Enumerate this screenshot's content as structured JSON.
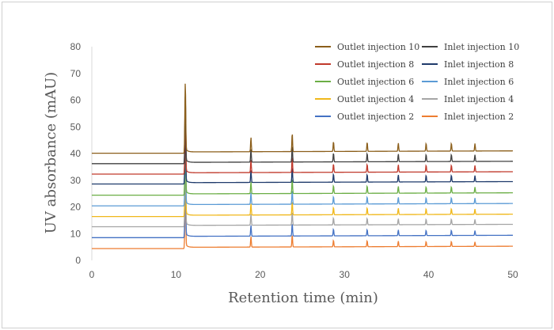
{
  "chart_data": {
    "type": "line",
    "title": "",
    "xlabel": "Retention time (min)",
    "ylabel": "UV absorbance (mAU)",
    "xlim": [
      0,
      50
    ],
    "ylim": [
      0,
      80
    ],
    "x_ticks": [
      0,
      10,
      20,
      30,
      40,
      50
    ],
    "y_ticks": [
      0,
      10,
      20,
      30,
      40,
      50,
      60,
      70,
      80
    ],
    "grid": false,
    "legend_position": "top-right",
    "peak_retention_times": [
      11.1,
      18.9,
      23.8,
      28.7,
      32.7,
      36.4,
      39.7,
      42.7,
      45.5
    ],
    "series": [
      {
        "name": "Outlet injection 10",
        "color": "#8B5E1A",
        "baseline": 40.1,
        "peak_heights": [
          26.5,
          5.4,
          7.0,
          3.8,
          3.5,
          3.1,
          3.0,
          3.0,
          2.8
        ]
      },
      {
        "name": "Inlet injection 10",
        "color": "#404040",
        "baseline": 36.2,
        "peak_heights": [
          25.5,
          4.9,
          6.2,
          3.4,
          3.2,
          2.9,
          2.7,
          2.7,
          2.5
        ]
      },
      {
        "name": "Outlet injection 8",
        "color": "#C0392B",
        "baseline": 32.3,
        "peak_heights": [
          24.5,
          4.8,
          6.0,
          3.2,
          3.0,
          2.8,
          2.6,
          2.6,
          2.4
        ]
      },
      {
        "name": "Inlet injection 8",
        "color": "#1F3A6B",
        "baseline": 28.6,
        "peak_heights": [
          23.5,
          4.6,
          5.8,
          3.1,
          2.9,
          2.7,
          2.5,
          2.5,
          2.3
        ]
      },
      {
        "name": "Outlet injection 6",
        "color": "#6BAE45",
        "baseline": 24.4,
        "peak_heights": [
          26.0,
          4.5,
          5.6,
          3.0,
          2.8,
          2.6,
          2.4,
          2.4,
          2.2
        ]
      },
      {
        "name": "Inlet injection 6",
        "color": "#5B9BD5",
        "baseline": 20.4,
        "peak_heights": [
          24.0,
          4.4,
          5.4,
          2.9,
          2.7,
          2.5,
          2.3,
          2.3,
          2.1
        ]
      },
      {
        "name": "Outlet injection 4",
        "color": "#F0B81B",
        "baseline": 16.4,
        "peak_heights": [
          25.0,
          4.3,
          5.2,
          2.8,
          2.6,
          2.4,
          2.2,
          2.2,
          2.0
        ]
      },
      {
        "name": "Inlet injection 4",
        "color": "#A5A5A5",
        "baseline": 12.6,
        "peak_heights": [
          25.0,
          4.2,
          5.0,
          2.7,
          2.5,
          2.3,
          2.1,
          2.1,
          1.9
        ]
      },
      {
        "name": "Outlet injection 2",
        "color": "#4472C4",
        "baseline": 8.5,
        "peak_heights": [
          24.0,
          4.1,
          4.8,
          2.6,
          2.4,
          2.2,
          2.0,
          2.0,
          1.8
        ]
      },
      {
        "name": "Inlet injection 2",
        "color": "#ED7D31",
        "baseline": 4.4,
        "peak_heights": [
          23.0,
          4.0,
          4.6,
          2.5,
          2.3,
          2.1,
          1.9,
          1.9,
          1.7
        ]
      }
    ]
  }
}
